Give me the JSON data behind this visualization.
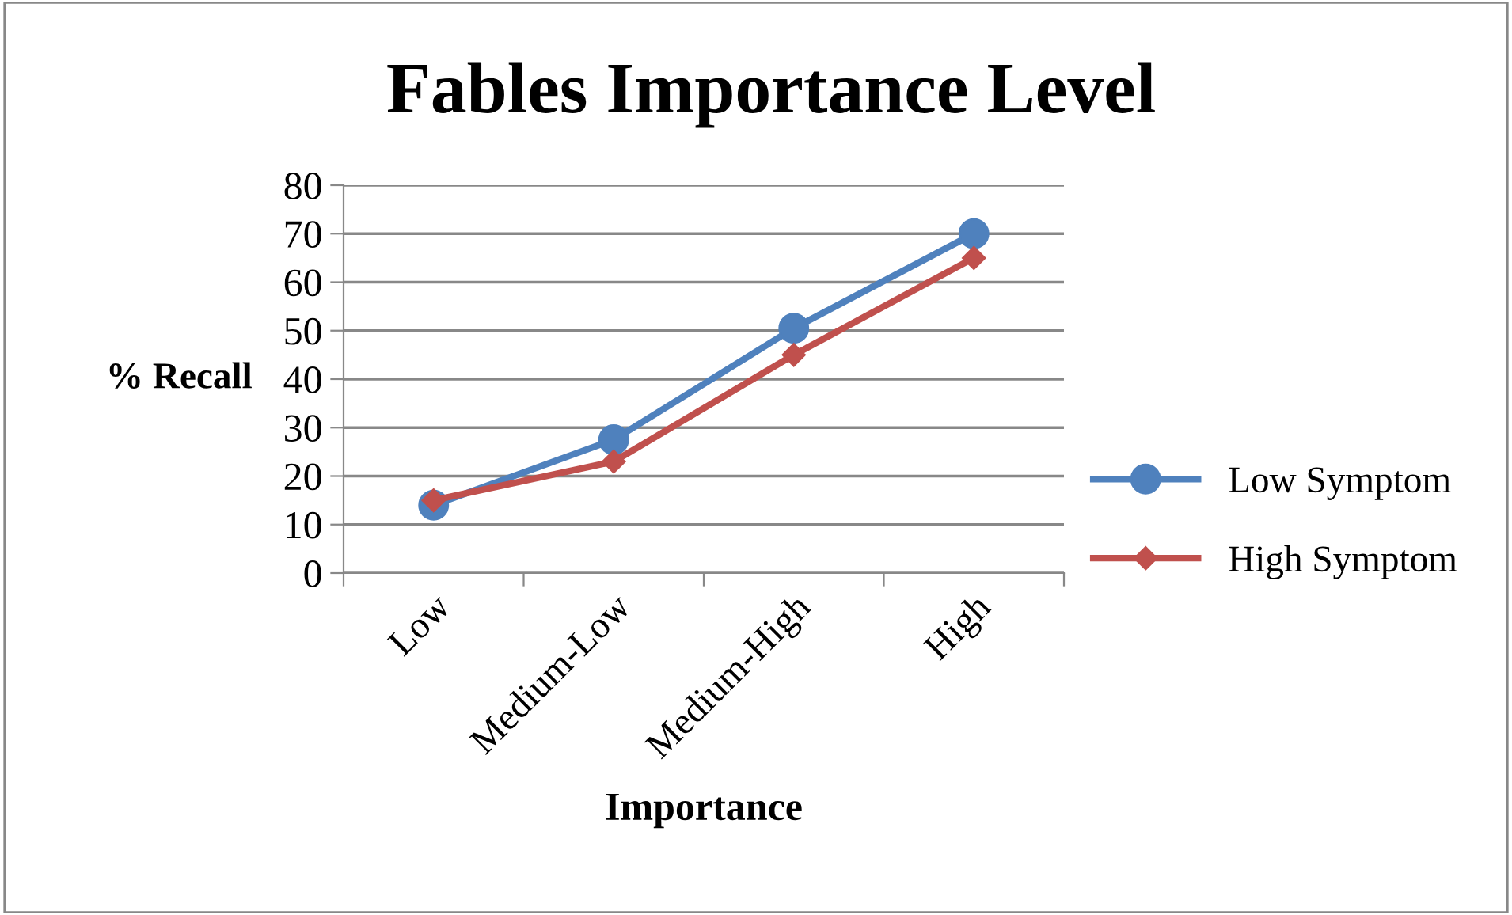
{
  "chart_data": {
    "type": "line",
    "title": "Fables Importance Level",
    "xlabel": "Importance",
    "ylabel": "% Recall",
    "categories": [
      "Low",
      "Medium-Low",
      "Medium-High",
      "High"
    ],
    "series": [
      {
        "name": "Low Symptom",
        "color": "#4f81bd",
        "values": [
          14,
          27.5,
          50.5,
          70
        ],
        "marker": "circle"
      },
      {
        "name": "High Symptom",
        "color": "#c0504d",
        "values": [
          15,
          23,
          45,
          65
        ],
        "marker": "diamond"
      }
    ],
    "ylim": [
      0,
      80
    ],
    "yticks": [
      0,
      10,
      20,
      30,
      40,
      50,
      60,
      70,
      80
    ],
    "grid": "y",
    "legend": "right",
    "line_style": "solid"
  }
}
